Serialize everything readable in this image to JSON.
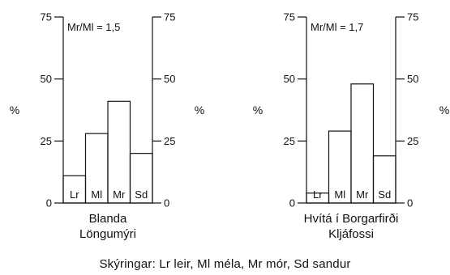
{
  "caption": "Skýringar: Lr leir, Ml méla, Mr mór, Sd sandur",
  "chart_data": [
    {
      "type": "bar",
      "annotation": "Mr/Ml = 1,5",
      "xlabel": [
        "Blanda",
        "Löngumýri"
      ],
      "ylabel_left": "%",
      "ylabel_right": "%",
      "ylim": [
        0,
        75
      ],
      "yticks": [
        0,
        25,
        50,
        75
      ],
      "categories": [
        "Lr",
        "Ml",
        "Mr",
        "Sd"
      ],
      "values": [
        11,
        28,
        41,
        20
      ]
    },
    {
      "type": "bar",
      "annotation": "Mr/Ml = 1,7",
      "xlabel": [
        "Hvítá í Borgarfirði",
        "Kljáfossi"
      ],
      "ylabel_left": "%",
      "ylabel_right": "%",
      "ylim": [
        0,
        75
      ],
      "yticks": [
        0,
        25,
        50,
        75
      ],
      "categories": [
        "Lr",
        "Ml",
        "Mr",
        "Sd"
      ],
      "values": [
        4,
        29,
        48,
        19
      ]
    }
  ]
}
